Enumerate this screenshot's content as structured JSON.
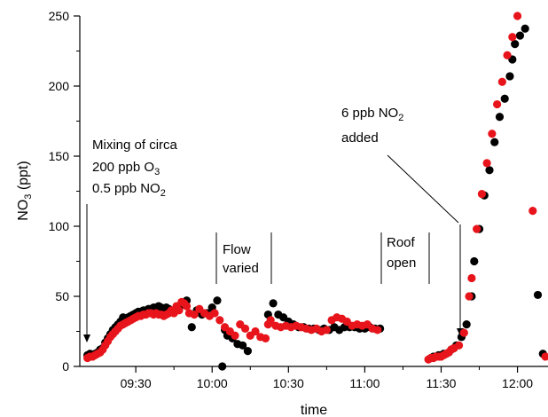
{
  "chart_data": {
    "type": "scatter",
    "xlabel": "time",
    "ylabel": {
      "pre": "NO",
      "sub": "3",
      "post": " (ppt)"
    },
    "xlim": [
      "09:08",
      "12:12"
    ],
    "ylim": [
      0,
      250
    ],
    "x_ticks": [
      "09:30",
      "10:00",
      "10:30",
      "11:00",
      "11:30",
      "12:00"
    ],
    "y_ticks": [
      0,
      50,
      100,
      150,
      200,
      250
    ],
    "series_colors": [
      "#000000",
      "#e8141b"
    ],
    "annotations": {
      "mixing": {
        "line1": "Mixing of circa",
        "line2_pre": "200 ppb O",
        "line2_sub": "3",
        "line3_pre": "0.5 ppb NO",
        "line3_sub": "2"
      },
      "no2_added": {
        "line1_pre": "6 ppb NO",
        "line1_sub": "2",
        "line2": "added"
      },
      "flow": {
        "line1": "Flow",
        "line2": "varied"
      },
      "roof": {
        "line1": "Roof",
        "line2": "open"
      }
    },
    "series": [
      {
        "color": "#000000",
        "points": [
          [
            "09:11",
            8
          ],
          [
            "09:12",
            9
          ],
          [
            "09:13",
            8
          ],
          [
            "09:14",
            9
          ],
          [
            "09:15",
            10
          ],
          [
            "09:16",
            12
          ],
          [
            "09:17",
            13
          ],
          [
            "09:18",
            17
          ],
          [
            "09:19",
            20
          ],
          [
            "09:20",
            23
          ],
          [
            "09:21",
            26
          ],
          [
            "09:22",
            28
          ],
          [
            "09:23",
            30
          ],
          [
            "09:24",
            32
          ],
          [
            "09:25",
            35
          ],
          [
            "09:26",
            34
          ],
          [
            "09:27",
            35
          ],
          [
            "09:28",
            36
          ],
          [
            "09:29",
            37
          ],
          [
            "09:30",
            38
          ],
          [
            "09:31",
            39
          ],
          [
            "09:32",
            39
          ],
          [
            "09:33",
            40
          ],
          [
            "09:34",
            40
          ],
          [
            "09:35",
            41
          ],
          [
            "09:36",
            41
          ],
          [
            "09:37",
            42
          ],
          [
            "09:38",
            42
          ],
          [
            "09:39",
            43
          ],
          [
            "09:40",
            42
          ],
          [
            "09:41",
            41
          ],
          [
            "09:42",
            42
          ],
          [
            "09:43",
            41
          ],
          [
            "09:44",
            40
          ],
          [
            "09:45",
            40
          ],
          [
            "09:46",
            42
          ],
          [
            "09:47",
            41
          ],
          [
            "09:48",
            44
          ],
          [
            "09:50",
            47
          ],
          [
            "09:52",
            28
          ],
          [
            "09:54",
            40
          ],
          [
            "09:56",
            37
          ],
          [
            "09:58",
            38
          ],
          [
            "10:00",
            42
          ],
          [
            "10:02",
            47
          ],
          [
            "10:04",
            0
          ],
          [
            "10:05",
            26
          ],
          [
            "10:06",
            22
          ],
          [
            "10:08",
            20
          ],
          [
            "10:10",
            16
          ],
          [
            "10:12",
            15
          ],
          [
            "10:14",
            11
          ],
          [
            "10:22",
            37
          ],
          [
            "10:24",
            45
          ],
          [
            "10:26",
            37
          ],
          [
            "10:28",
            35
          ],
          [
            "10:30",
            32
          ],
          [
            "10:32",
            30
          ],
          [
            "10:34",
            28
          ],
          [
            "10:36",
            28
          ],
          [
            "10:38",
            27
          ],
          [
            "10:40",
            27
          ],
          [
            "10:42",
            26
          ],
          [
            "10:44",
            27
          ],
          [
            "10:46",
            26
          ],
          [
            "10:48",
            28
          ],
          [
            "10:50",
            26
          ],
          [
            "10:52",
            28
          ],
          [
            "10:54",
            28
          ],
          [
            "10:56",
            28
          ],
          [
            "10:58",
            27
          ],
          [
            "11:00",
            27
          ],
          [
            "11:02",
            28
          ],
          [
            "11:04",
            27
          ],
          [
            "11:06",
            27
          ],
          [
            "11:26",
            6
          ],
          [
            "11:27",
            7
          ],
          [
            "11:28",
            7
          ],
          [
            "11:29",
            8
          ],
          [
            "11:30",
            8
          ],
          [
            "11:31",
            9
          ],
          [
            "11:32",
            9
          ],
          [
            "11:33",
            10
          ],
          [
            "11:34",
            12
          ],
          [
            "11:35",
            13
          ],
          [
            "11:36",
            15
          ],
          [
            "11:38",
            21
          ],
          [
            "11:40",
            30
          ],
          [
            "11:42",
            50
          ],
          [
            "11:43",
            75
          ],
          [
            "11:45",
            98
          ],
          [
            "11:47",
            122
          ],
          [
            "11:49",
            140
          ],
          [
            "11:51",
            160
          ],
          [
            "11:53",
            178
          ],
          [
            "11:55",
            191
          ],
          [
            "11:57",
            207
          ],
          [
            "11:58",
            219
          ],
          [
            "11:59",
            230
          ],
          [
            "12:01",
            236
          ],
          [
            "12:03",
            241
          ],
          [
            "12:08",
            51
          ],
          [
            "12:10",
            9
          ]
        ]
      },
      {
        "color": "#e8141b",
        "points": [
          [
            "09:11",
            6
          ],
          [
            "09:12",
            7
          ],
          [
            "09:13",
            7
          ],
          [
            "09:14",
            8
          ],
          [
            "09:15",
            9
          ],
          [
            "09:16",
            10
          ],
          [
            "09:17",
            12
          ],
          [
            "09:18",
            15
          ],
          [
            "09:19",
            18
          ],
          [
            "09:20",
            21
          ],
          [
            "09:21",
            23
          ],
          [
            "09:22",
            25
          ],
          [
            "09:23",
            27
          ],
          [
            "09:24",
            29
          ],
          [
            "09:25",
            30
          ],
          [
            "09:26",
            31
          ],
          [
            "09:27",
            32
          ],
          [
            "09:28",
            33
          ],
          [
            "09:29",
            34
          ],
          [
            "09:30",
            35
          ],
          [
            "09:31",
            36
          ],
          [
            "09:32",
            36
          ],
          [
            "09:33",
            37
          ],
          [
            "09:34",
            37
          ],
          [
            "09:35",
            38
          ],
          [
            "09:36",
            38
          ],
          [
            "09:37",
            37
          ],
          [
            "09:38",
            38
          ],
          [
            "09:39",
            37
          ],
          [
            "09:40",
            37
          ],
          [
            "09:41",
            36
          ],
          [
            "09:42",
            37
          ],
          [
            "09:43",
            38
          ],
          [
            "09:44",
            40
          ],
          [
            "09:45",
            38
          ],
          [
            "09:46",
            43
          ],
          [
            "09:47",
            40
          ],
          [
            "09:48",
            46
          ],
          [
            "09:49",
            45
          ],
          [
            "09:50",
            43
          ],
          [
            "09:51",
            38
          ],
          [
            "09:53",
            37
          ],
          [
            "09:55",
            41
          ],
          [
            "09:57",
            38
          ],
          [
            "09:59",
            36
          ],
          [
            "10:01",
            38
          ],
          [
            "10:03",
            33
          ],
          [
            "10:05",
            28
          ],
          [
            "10:07",
            25
          ],
          [
            "10:09",
            22
          ],
          [
            "10:11",
            30
          ],
          [
            "10:13",
            27
          ],
          [
            "10:15",
            22
          ],
          [
            "10:17",
            25
          ],
          [
            "10:19",
            21
          ],
          [
            "10:21",
            20
          ],
          [
            "10:22",
            30
          ],
          [
            "10:23",
            33
          ],
          [
            "10:25",
            29
          ],
          [
            "10:27",
            28
          ],
          [
            "10:29",
            29
          ],
          [
            "10:31",
            28
          ],
          [
            "10:33",
            29
          ],
          [
            "10:35",
            28
          ],
          [
            "10:37",
            27
          ],
          [
            "10:39",
            26
          ],
          [
            "10:41",
            27
          ],
          [
            "10:43",
            25
          ],
          [
            "10:45",
            26
          ],
          [
            "10:47",
            33
          ],
          [
            "10:49",
            35
          ],
          [
            "10:51",
            34
          ],
          [
            "10:53",
            32
          ],
          [
            "10:55",
            29
          ],
          [
            "10:57",
            30
          ],
          [
            "10:59",
            29
          ],
          [
            "11:01",
            30
          ],
          [
            "11:03",
            27
          ],
          [
            "11:05",
            26
          ],
          [
            "11:25",
            5
          ],
          [
            "11:26",
            6
          ],
          [
            "11:27",
            6
          ],
          [
            "11:28",
            7
          ],
          [
            "11:29",
            7
          ],
          [
            "11:30",
            7
          ],
          [
            "11:31",
            8
          ],
          [
            "11:32",
            9
          ],
          [
            "11:33",
            10
          ],
          [
            "11:34",
            12
          ],
          [
            "11:35",
            13
          ],
          [
            "11:37",
            15
          ],
          [
            "11:39",
            24
          ],
          [
            "11:41",
            50
          ],
          [
            "11:42",
            63
          ],
          [
            "11:44",
            98
          ],
          [
            "11:46",
            123
          ],
          [
            "11:48",
            145
          ],
          [
            "11:50",
            166
          ],
          [
            "11:52",
            187
          ],
          [
            "11:54",
            203
          ],
          [
            "11:56",
            222
          ],
          [
            "11:58",
            235
          ],
          [
            "12:00",
            250
          ],
          [
            "12:06",
            111
          ],
          [
            "12:11",
            7
          ]
        ]
      }
    ]
  }
}
